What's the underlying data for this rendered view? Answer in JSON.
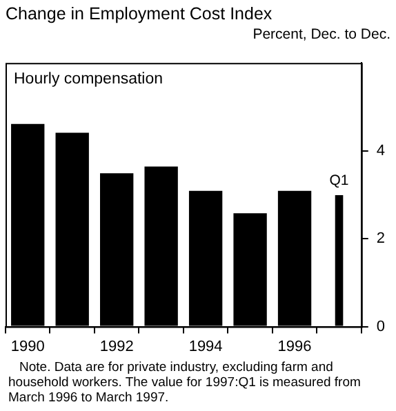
{
  "chart_data": {
    "type": "bar",
    "title": "Change in Employment Cost Index",
    "ylabel": "Percent, Dec. to Dec.",
    "subtitle": "Hourly compensation",
    "categories": [
      "1990",
      null,
      "1992",
      null,
      "1994",
      null,
      "1996",
      null
    ],
    "series": [
      {
        "color": "#000000",
        "values": [
          4.61,
          4.41,
          3.49,
          3.64,
          3.09,
          2.58,
          3.09,
          null
        ]
      },
      {
        "color": "#000000",
        "values": [
          null,
          null,
          null,
          null,
          null,
          null,
          null,
          2.99
        ]
      }
    ],
    "ylim": [
      0,
      6
    ],
    "yticks": [
      0,
      2,
      4
    ],
    "grid": false,
    "legend": false,
    "annotations": [
      {
        "text": "Q1",
        "y": 2.99
      },
      "Note. Data are for private industry, excluding farm and household workers. The value for 1997:Q1 is measured from March 1996 to March 1997."
    ]
  }
}
